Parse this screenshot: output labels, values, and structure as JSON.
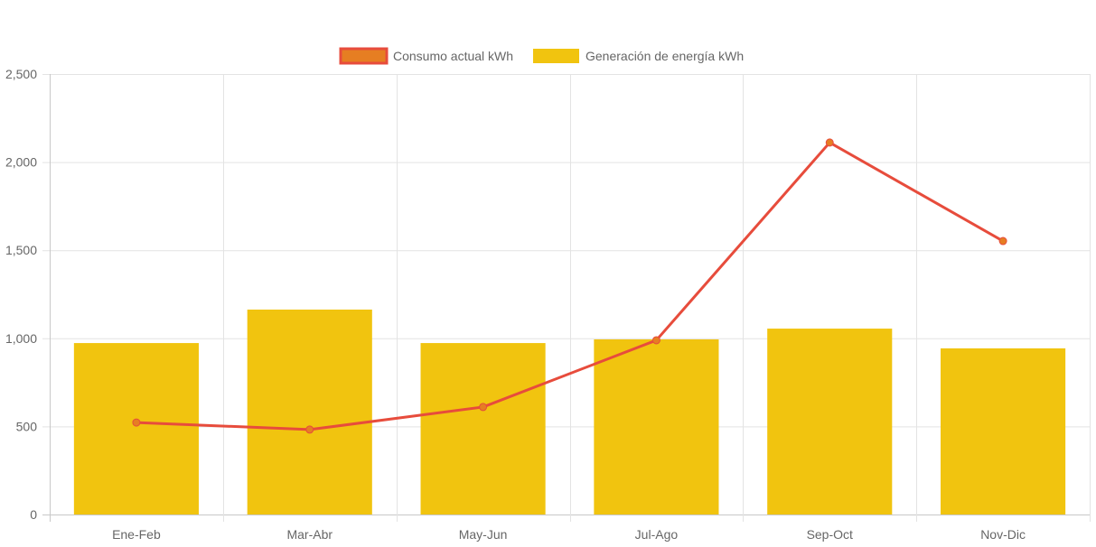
{
  "chart_data": {
    "type": "bar",
    "title": "",
    "xlabel": "",
    "ylabel": "",
    "categories": [
      "Ene-Feb",
      "Mar-Abr",
      "May-Jun",
      "Jul-Ago",
      "Sep-Oct",
      "Nov-Dic"
    ],
    "ylim": [
      0,
      2500
    ],
    "yticks": [
      0,
      500,
      1000,
      1500,
      2000,
      2500
    ],
    "ytick_labels": [
      "0",
      "500",
      "1,000",
      "1,500",
      "2,000",
      "2,500"
    ],
    "grid": true,
    "legend_position": "top",
    "series": [
      {
        "name": "Consumo actual kWh",
        "type": "line",
        "color": "#e74c3c",
        "point_color": "#e67e22",
        "values": [
          522,
          482,
          610,
          989,
          2111,
          1552
        ]
      },
      {
        "name": "Generación de energía kWh",
        "type": "bar",
        "color": "#f1c40f",
        "values": [
          973,
          1163,
          973,
          994,
          1055,
          943
        ]
      }
    ]
  }
}
